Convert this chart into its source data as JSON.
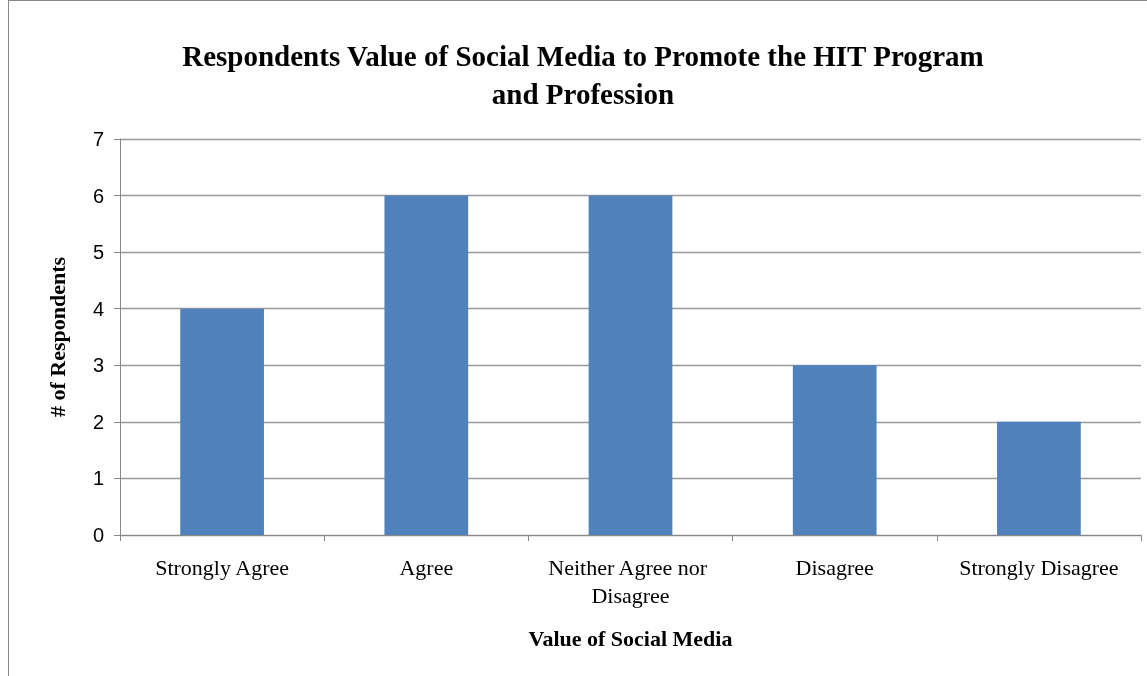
{
  "chart_data": {
    "type": "bar",
    "title": "Respondents Value of Social Media to Promote the HIT Program\nand Profession",
    "xlabel": "Value of Social Media",
    "ylabel": "# of Respondents",
    "categories": [
      "Strongly Agree",
      "Agree",
      "Neither Agree nor Disagree",
      "Disagree",
      "Strongly Disagree"
    ],
    "values": [
      4,
      6,
      6,
      3,
      2
    ],
    "color": "#4f81bd",
    "ylim": [
      0,
      7
    ],
    "yticks": [
      0,
      1,
      2,
      3,
      4,
      5,
      6,
      7
    ],
    "grid": "y"
  }
}
